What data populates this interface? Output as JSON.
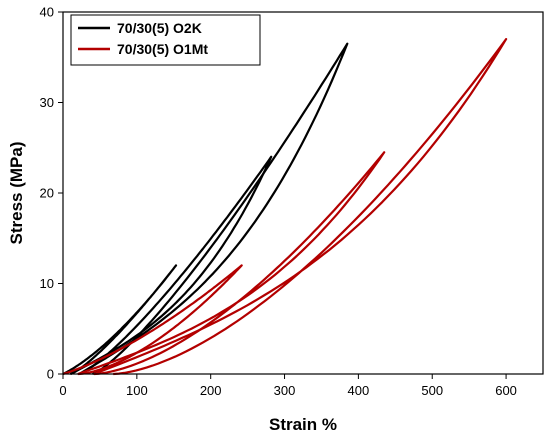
{
  "chart_data": {
    "type": "line",
    "xlabel": "Strain %",
    "ylabel": "Stress (MPa)",
    "xlim": [
      0,
      650
    ],
    "ylim": [
      0,
      40
    ],
    "xticks": [
      0,
      100,
      200,
      300,
      400,
      500,
      600
    ],
    "yticks": [
      0,
      10,
      20,
      30,
      40
    ],
    "grid": false,
    "legend_position": "top-left",
    "series": [
      {
        "name": "70/30(5) O2K",
        "color": "#000000",
        "cycles": [
          {
            "peak_strain": 153,
            "peak_stress": 12,
            "residual_strain": 10
          },
          {
            "peak_strain": 282,
            "peak_stress": 24,
            "residual_strain": 22
          },
          {
            "peak_strain": 385,
            "peak_stress": 36.5,
            "residual_strain": 40
          }
        ]
      },
      {
        "name": "70/30(5) O1Mt",
        "color": "#b30000",
        "cycles": [
          {
            "peak_strain": 242,
            "peak_stress": 12,
            "residual_strain": 20
          },
          {
            "peak_strain": 435,
            "peak_stress": 24.5,
            "residual_strain": 42
          },
          {
            "peak_strain": 600,
            "peak_stress": 37,
            "residual_strain": 68
          }
        ]
      }
    ]
  }
}
